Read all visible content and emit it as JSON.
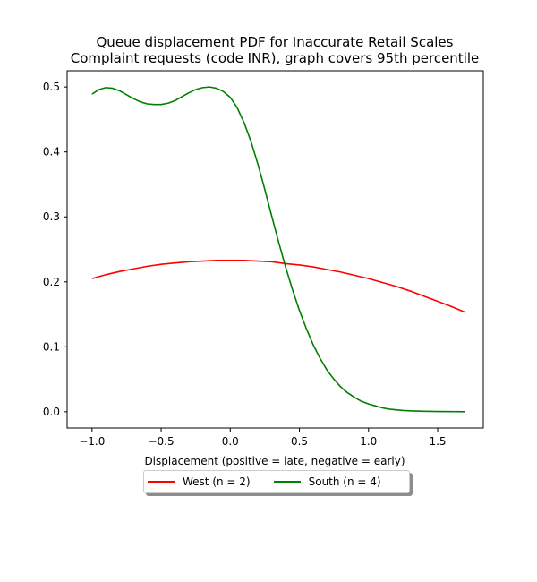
{
  "chart_data": {
    "type": "line",
    "title": "Queue displacement PDF for Inaccurate Retail Scales",
    "subtitle": "Complaint  requests (code INR), graph covers 95th percentile",
    "xlabel": "Displacement (positive = late, negative = early)",
    "ylabel": "",
    "xlim": [
      -1.18,
      1.83
    ],
    "ylim": [
      -0.025,
      0.525
    ],
    "xticks": [
      -1.0,
      -0.5,
      0.0,
      0.5,
      1.0,
      1.5
    ],
    "xtick_labels": [
      "−1.0",
      "−0.5",
      "0.0",
      "0.5",
      "1.0",
      "1.5"
    ],
    "yticks": [
      0.0,
      0.1,
      0.2,
      0.3,
      0.4,
      0.5
    ],
    "ytick_labels": [
      "0.0",
      "0.1",
      "0.2",
      "0.3",
      "0.4",
      "0.5"
    ],
    "grid": false,
    "legend_position": "below",
    "series": [
      {
        "name": "West (n = 2)",
        "color": "#ff0000",
        "x": [
          -1.0,
          -0.9,
          -0.8,
          -0.7,
          -0.6,
          -0.5,
          -0.4,
          -0.3,
          -0.2,
          -0.1,
          0.0,
          0.1,
          0.2,
          0.3,
          0.4,
          0.5,
          0.6,
          0.7,
          0.8,
          0.9,
          1.0,
          1.1,
          1.2,
          1.3,
          1.4,
          1.5,
          1.6,
          1.7
        ],
        "y": [
          0.205,
          0.211,
          0.216,
          0.22,
          0.224,
          0.227,
          0.229,
          0.231,
          0.232,
          0.233,
          0.233,
          0.233,
          0.232,
          0.231,
          0.228,
          0.226,
          0.223,
          0.219,
          0.215,
          0.21,
          0.205,
          0.199,
          0.193,
          0.186,
          0.178,
          0.17,
          0.162,
          0.153
        ]
      },
      {
        "name": "South (n = 4)",
        "color": "#008000",
        "x": [
          -1.0,
          -0.95,
          -0.9,
          -0.85,
          -0.8,
          -0.75,
          -0.7,
          -0.65,
          -0.6,
          -0.55,
          -0.5,
          -0.45,
          -0.4,
          -0.35,
          -0.3,
          -0.25,
          -0.2,
          -0.15,
          -0.1,
          -0.05,
          0.0,
          0.05,
          0.1,
          0.15,
          0.2,
          0.25,
          0.3,
          0.35,
          0.4,
          0.45,
          0.5,
          0.55,
          0.6,
          0.65,
          0.7,
          0.75,
          0.8,
          0.85,
          0.9,
          0.95,
          1.0,
          1.05,
          1.1,
          1.15,
          1.2,
          1.25,
          1.3,
          1.4,
          1.5,
          1.6,
          1.7
        ],
        "y": [
          0.489,
          0.496,
          0.499,
          0.498,
          0.494,
          0.488,
          0.482,
          0.477,
          0.474,
          0.473,
          0.473,
          0.475,
          0.479,
          0.485,
          0.491,
          0.496,
          0.499,
          0.5,
          0.498,
          0.493,
          0.484,
          0.468,
          0.445,
          0.416,
          0.381,
          0.342,
          0.301,
          0.261,
          0.223,
          0.188,
          0.156,
          0.128,
          0.103,
          0.082,
          0.064,
          0.05,
          0.038,
          0.029,
          0.022,
          0.016,
          0.012,
          0.009,
          0.006,
          0.004,
          0.003,
          0.002,
          0.0015,
          0.0008,
          0.0004,
          0.0002,
          0.0001
        ]
      }
    ]
  }
}
